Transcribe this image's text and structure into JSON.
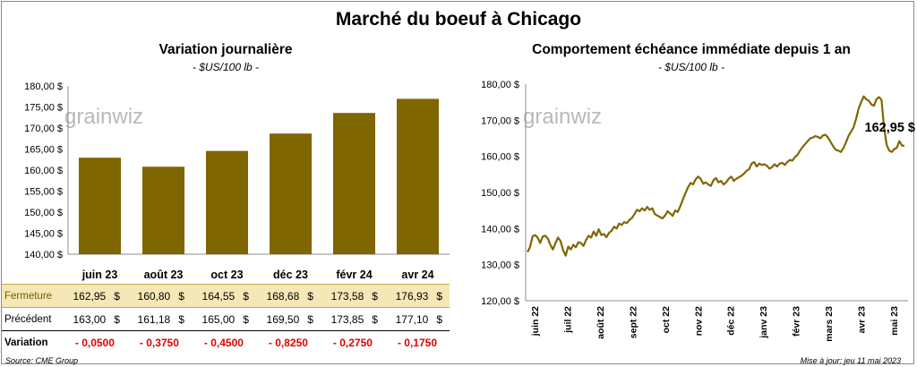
{
  "page": {
    "title": "Marché du boeuf à Chicago",
    "source": "Source: CME Group",
    "updated": "Mise à jour: jeu 11 mai 2023",
    "watermark": "grainwiz"
  },
  "colors": {
    "bar": "#806600",
    "line": "#806600",
    "close_bg": "#f5e8b6",
    "negative": "#e00000"
  },
  "chart_data": [
    {
      "type": "bar",
      "title": "Variation journalière",
      "subtitle": "- $US/100 lb -",
      "categories": [
        "juin 23",
        "août 23",
        "oct 23",
        "déc 23",
        "févr 24",
        "avr 24"
      ],
      "values": [
        162.95,
        160.8,
        164.55,
        168.68,
        173.58,
        176.93
      ],
      "ylim": [
        140,
        180
      ],
      "yticks": [
        "140,00 $",
        "145,00 $",
        "150,00 $",
        "155,00 $",
        "160,00 $",
        "165,00 $",
        "170,00 $",
        "175,00 $",
        "180,00 $"
      ],
      "grid": false
    },
    {
      "type": "line",
      "title": "Comportement  échéance immédiate depuis 1 an",
      "subtitle": "- $US/100 lb -",
      "x_labels": [
        "juin 22",
        "juil 22",
        "août 22",
        "sept 22",
        "oct 22",
        "nov 22",
        "déc 22",
        "janv 23",
        "févr 23",
        "mars 23",
        "avr 23",
        "mai 23"
      ],
      "ylim": [
        120,
        180
      ],
      "yticks": [
        "120,00 $",
        "130,00 $",
        "140,00 $",
        "150,00 $",
        "160,00 $",
        "170,00 $",
        "180,00 $"
      ],
      "last_value_label": "162,95 $",
      "series": [
        {
          "values": [
            133.5,
            134.8,
            137.8,
            138.2,
            137.5,
            136.0,
            137.8,
            138.0,
            137.2,
            135.5,
            134.2,
            136.0,
            137.5,
            136.5,
            134.0,
            132.5,
            135.0,
            134.2,
            135.5,
            134.8,
            136.2,
            136.0,
            135.2,
            136.8,
            138.0,
            137.5,
            139.2,
            138.0,
            139.8,
            138.2,
            138.5,
            137.6,
            138.8,
            139.4,
            140.5,
            140.0,
            141.4,
            141.0,
            141.8,
            141.5,
            142.4,
            142.9,
            144.0,
            145.2,
            144.8,
            145.6,
            145.0,
            146.0,
            145.2,
            145.6,
            144.0,
            143.6,
            143.2,
            142.8,
            143.6,
            144.8,
            144.2,
            143.5,
            145.0,
            144.6,
            146.2,
            148.0,
            149.8,
            151.4,
            152.6,
            152.2,
            153.6,
            154.4,
            153.8,
            152.4,
            152.8,
            152.2,
            151.8,
            153.4,
            154.0,
            152.8,
            153.2,
            152.2,
            152.8,
            153.8,
            154.4,
            153.2,
            153.8,
            154.2,
            154.6,
            155.2,
            156.0,
            156.4,
            158.0,
            158.4,
            157.2,
            158.0,
            157.6,
            157.8,
            157.4,
            156.6,
            157.0,
            157.8,
            157.2,
            158.0,
            158.2,
            157.6,
            158.4,
            159.0,
            158.8,
            159.8,
            160.4,
            161.6,
            162.6,
            163.4,
            164.2,
            165.0,
            165.2,
            165.6,
            165.4,
            165.0,
            165.8,
            166.0,
            165.2,
            164.0,
            162.8,
            161.8,
            161.6,
            161.2,
            162.2,
            163.8,
            165.6,
            166.8,
            168.0,
            170.4,
            173.2,
            175.0,
            176.6,
            175.8,
            175.4,
            174.4,
            174.0,
            175.8,
            176.4,
            175.6,
            168.0,
            163.2,
            161.6,
            161.2,
            162.0,
            162.4,
            164.2,
            163.0,
            162.95
          ]
        }
      ]
    }
  ],
  "table": {
    "rows": [
      {
        "label": "Fermeture",
        "values": [
          "162,95",
          "160,80",
          "164,55",
          "168,68",
          "173,58",
          "176,93"
        ],
        "unit": "$"
      },
      {
        "label": "Précédent",
        "values": [
          "163,00",
          "161,18",
          "165,00",
          "169,50",
          "173,85",
          "177,10"
        ],
        "unit": "$"
      },
      {
        "label": "Variation",
        "values": [
          "- 0,0500",
          "- 0,3750",
          "- 0,4500",
          "- 0,8250",
          "- 0,2750",
          "- 0,1750"
        ],
        "unit": ""
      }
    ]
  }
}
